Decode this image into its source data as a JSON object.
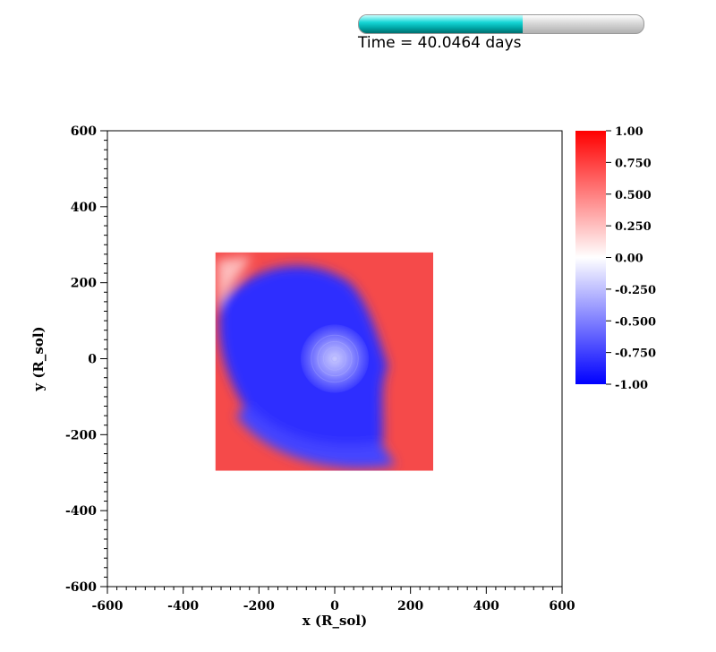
{
  "header": {
    "time_label": "Time = 40.0464 days",
    "progress_fraction": 0.575,
    "progress_colors": {
      "fill": "#00c8c8",
      "track": "#e0e0e0"
    }
  },
  "chart_data": {
    "type": "heatmap",
    "title": "",
    "xlabel": "x (R_sol)",
    "ylabel": "y (R_sol)",
    "xlim": [
      -600,
      600
    ],
    "ylim": [
      -600,
      600
    ],
    "x_ticks": [
      -600,
      -400,
      -200,
      0,
      200,
      400,
      600
    ],
    "y_ticks": [
      -600,
      -400,
      -200,
      0,
      200,
      400,
      600
    ],
    "data_extent": {
      "x": [
        -315,
        260
      ],
      "y": [
        -295,
        280
      ]
    },
    "colorbar": {
      "range": [
        -1.0,
        1.0
      ],
      "ticks": [
        "1.00",
        "0.750",
        "0.500",
        "0.250",
        "0.00",
        "-0.250",
        "-0.500",
        "-0.750",
        "-1.00"
      ],
      "colors": {
        "high": "#ff0000",
        "mid": "#ffffff",
        "low": "#0000ff"
      }
    }
  }
}
